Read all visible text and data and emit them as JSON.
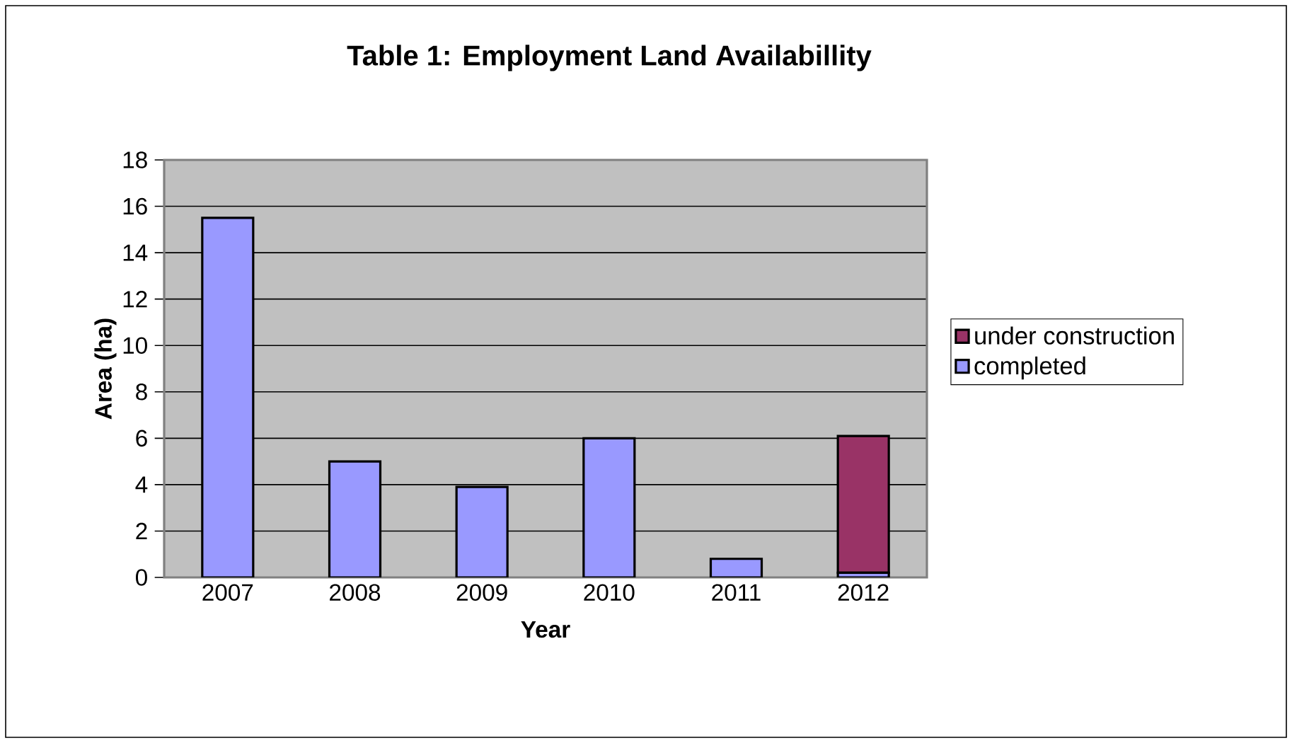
{
  "chart_data": {
    "type": "bar",
    "title": "Table 1: Employment Land Availabillity",
    "xlabel": "Year",
    "ylabel": "Area (ha)",
    "categories": [
      "2007",
      "2008",
      "2009",
      "2010",
      "2011",
      "2012"
    ],
    "stacked": true,
    "series": [
      {
        "name": "completed",
        "color": "#9999ff",
        "values": [
          15.5,
          5.0,
          3.9,
          6.0,
          0.8,
          0.2
        ]
      },
      {
        "name": "under construction",
        "color": "#993366",
        "values": [
          null,
          null,
          null,
          null,
          null,
          5.9
        ]
      }
    ],
    "ylim": [
      0,
      18
    ],
    "yticks": [
      0,
      2,
      4,
      6,
      8,
      10,
      12,
      14,
      16,
      18
    ],
    "grid": "y",
    "legend": "right"
  }
}
